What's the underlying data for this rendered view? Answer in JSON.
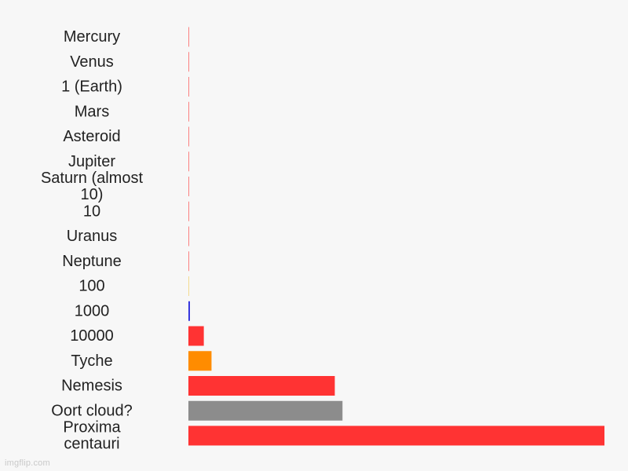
{
  "chart_data": {
    "type": "bar",
    "orientation": "horizontal",
    "categories": [
      "Mercury",
      "Venus",
      "1 (Earth)",
      "Mars",
      "Asteroid",
      "Jupiter",
      "Saturn (almost 10)",
      "10",
      "Uranus",
      "Neptune",
      "100",
      "1000",
      "10000",
      "Tyche",
      "Nemesis",
      "Oort cloud?",
      "Proxima centauri"
    ],
    "values": [
      0.39,
      0.72,
      1,
      1.52,
      2.7,
      5.2,
      9.5,
      10,
      19,
      30,
      100,
      1000,
      10000,
      15000,
      95000,
      100000,
      270000
    ],
    "colors": [
      "#ff3333",
      "#ff3333",
      "#ff3333",
      "#ff3333",
      "#ff3333",
      "#ff3333",
      "#ff3333",
      "#ff3333",
      "#ff3333",
      "#ff3333",
      "#f2c94c",
      "#3333dd",
      "#ff3333",
      "#ff8c00",
      "#ff3333",
      "#8c8c8c",
      "#ff3333"
    ],
    "xlim": [
      0,
      270000
    ],
    "title": "",
    "xlabel": "",
    "ylabel": "",
    "grid": false,
    "legend": "none"
  },
  "watermark": "imgflip.com"
}
